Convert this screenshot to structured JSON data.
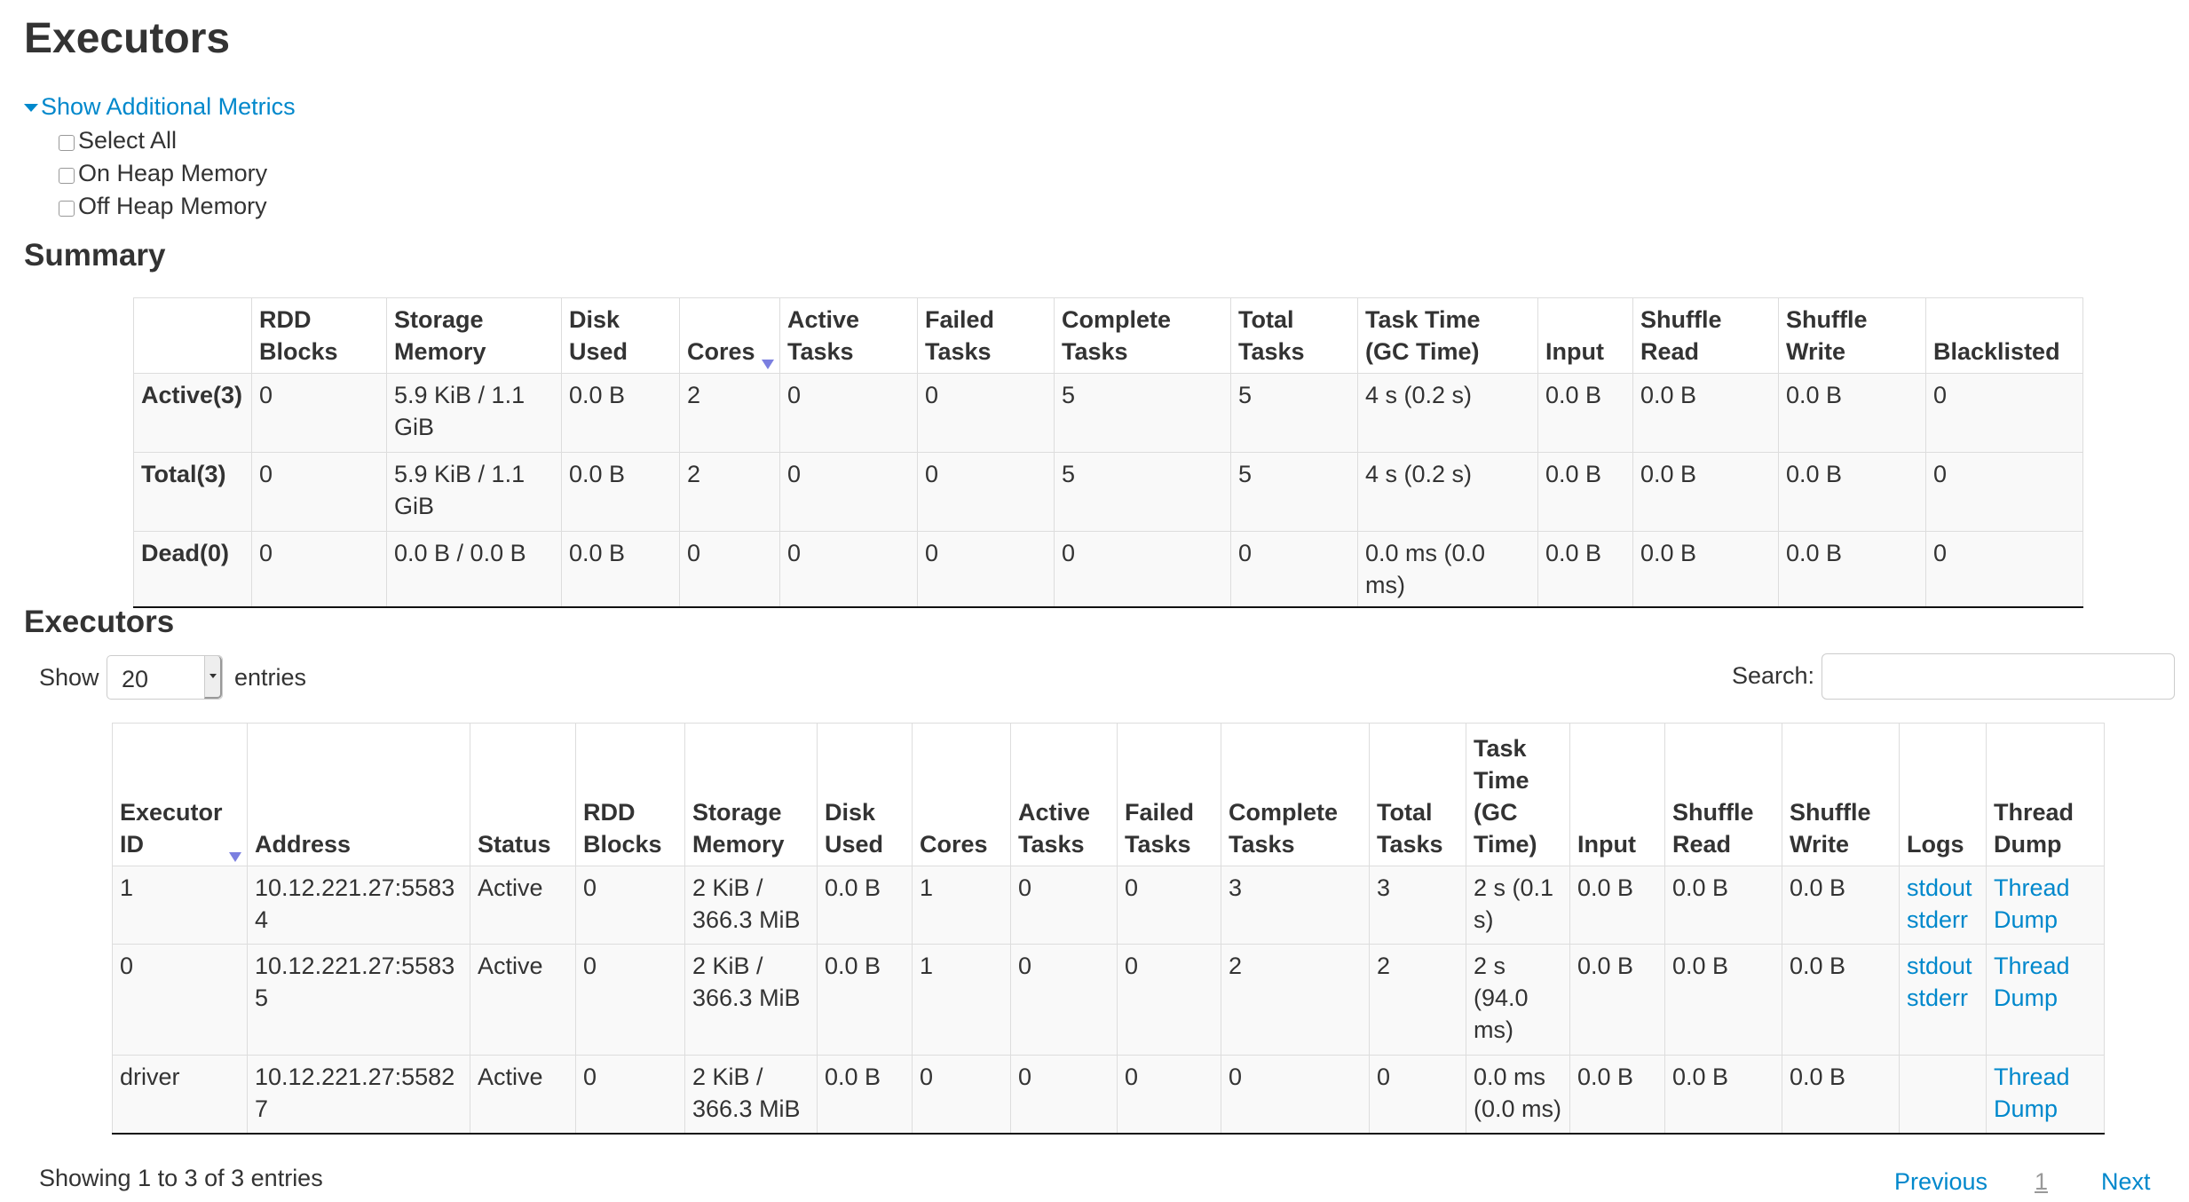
{
  "page_title": "Executors",
  "additional_metrics": {
    "toggle_label": "Show Additional Metrics",
    "options": [
      {
        "label": "Select All",
        "checked": false
      },
      {
        "label": "On Heap Memory",
        "checked": false
      },
      {
        "label": "Off Heap Memory",
        "checked": false
      }
    ]
  },
  "summary": {
    "heading": "Summary",
    "columns": [
      "",
      "RDD Blocks",
      "Storage Memory",
      "Disk Used",
      "Cores",
      "Active Tasks",
      "Failed Tasks",
      "Complete Tasks",
      "Total Tasks",
      "Task Time (GC Time)",
      "Input",
      "Shuffle Read",
      "Shuffle Write",
      "Blacklisted"
    ],
    "sorted_column": "Cores",
    "rows": [
      [
        "Active(3)",
        "0",
        "5.9 KiB / 1.1 GiB",
        "0.0 B",
        "2",
        "0",
        "0",
        "5",
        "5",
        "4 s (0.2 s)",
        "0.0 B",
        "0.0 B",
        "0.0 B",
        "0"
      ],
      [
        "Total(3)",
        "0",
        "5.9 KiB / 1.1 GiB",
        "0.0 B",
        "2",
        "0",
        "0",
        "5",
        "5",
        "4 s (0.2 s)",
        "0.0 B",
        "0.0 B",
        "0.0 B",
        "0"
      ],
      [
        "Dead(0)",
        "0",
        "0.0 B / 0.0 B",
        "0.0 B",
        "0",
        "0",
        "0",
        "0",
        "0",
        "0.0 ms (0.0 ms)",
        "0.0 B",
        "0.0 B",
        "0.0 B",
        "0"
      ]
    ]
  },
  "executors": {
    "heading": "Executors",
    "show_label": "Show",
    "page_size": "20",
    "entries_label": "entries",
    "search_label": "Search:",
    "search_value": "",
    "columns": [
      "Executor ID",
      "Address",
      "Status",
      "RDD Blocks",
      "Storage Memory",
      "Disk Used",
      "Cores",
      "Active Tasks",
      "Failed Tasks",
      "Complete Tasks",
      "Total Tasks",
      "Task Time (GC Time)",
      "Input",
      "Shuffle Read",
      "Shuffle Write",
      "Logs",
      "Thread Dump"
    ],
    "sorted_column": "Executor ID",
    "rows": [
      {
        "cells": [
          "1",
          "10.12.221.27:55834",
          "Active",
          "0",
          "2 KiB / 366.3 MiB",
          "0.0 B",
          "1",
          "0",
          "0",
          "3",
          "3",
          "2 s (0.1 s)",
          "0.0 B",
          "0.0 B",
          "0.0 B"
        ],
        "logs": [
          "stdout",
          "stderr"
        ],
        "thread_dump": "Thread Dump"
      },
      {
        "cells": [
          "0",
          "10.12.221.27:55835",
          "Active",
          "0",
          "2 KiB / 366.3 MiB",
          "0.0 B",
          "1",
          "0",
          "0",
          "2",
          "2",
          "2 s (94.0 ms)",
          "0.0 B",
          "0.0 B",
          "0.0 B"
        ],
        "logs": [
          "stdout",
          "stderr"
        ],
        "thread_dump": "Thread Dump"
      },
      {
        "cells": [
          "driver",
          "10.12.221.27:55827",
          "Active",
          "0",
          "2 KiB / 366.3 MiB",
          "0.0 B",
          "0",
          "0",
          "0",
          "0",
          "0",
          "0.0 ms (0.0 ms)",
          "0.0 B",
          "0.0 B",
          "0.0 B"
        ],
        "logs": [],
        "thread_dump": "Thread Dump"
      }
    ],
    "info": "Showing 1 to 3 of 3 entries",
    "pagination": {
      "previous": "Previous",
      "current": "1",
      "next": "Next"
    }
  },
  "colors": {
    "link": "#0088cc",
    "sort_arrow": "#7b7fe0",
    "row_bg": "#f9f9f9"
  }
}
